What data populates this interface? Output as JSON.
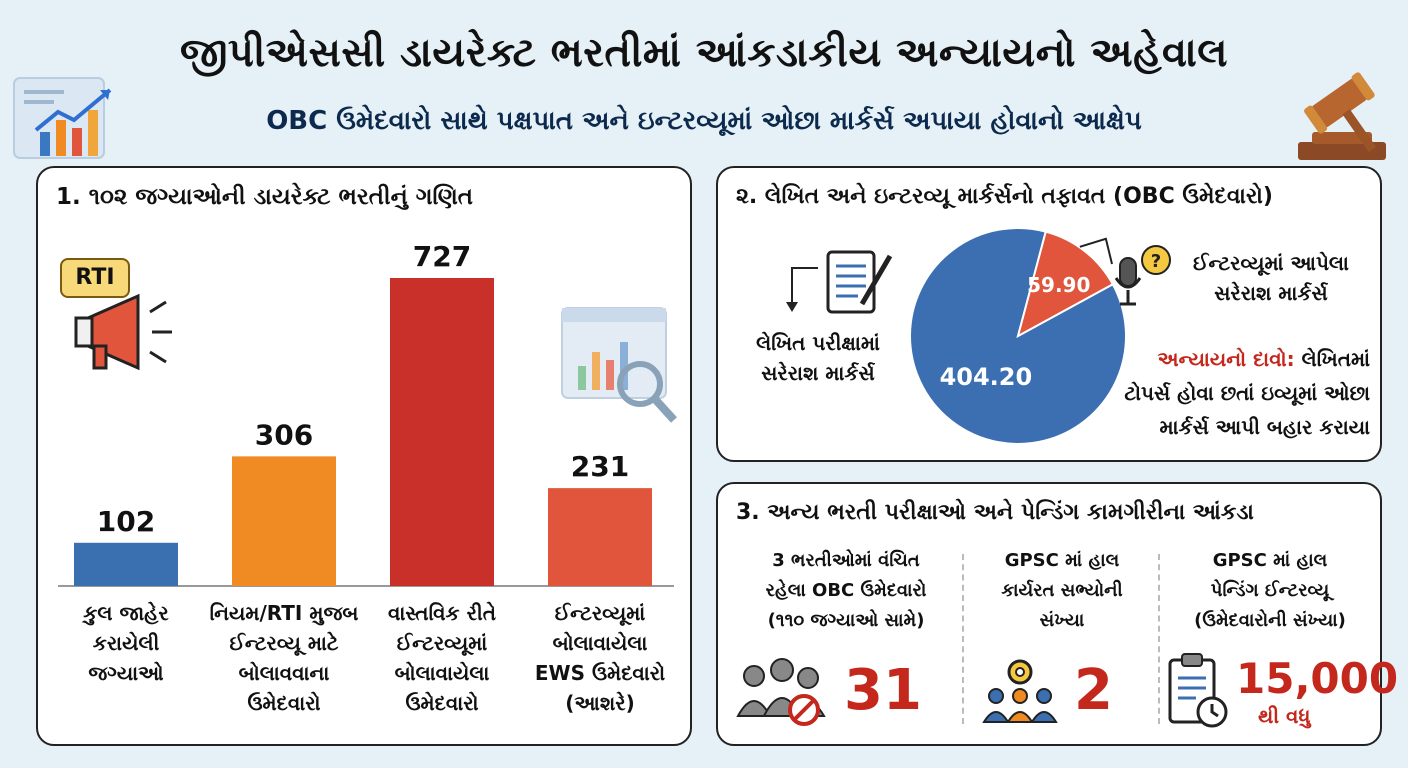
{
  "header": {
    "title": "જીપીએસસી ડાયરેક્ટ ભરતીમાં આંકડાકીય અન્યાયનો અહેવાલ",
    "subtitle": "OBC ઉમેદવારો સાથે પક્ષપાત અને ઇન્ટરવ્યૂમાં ઓછા માર્કર્સ અપાયા હોવાનો આક્ષેપ"
  },
  "chart_data": [
    {
      "type": "bar",
      "title": "1. ૧૦૨ જગ્યાઓની ડાયરેક્ટ ભરતીનું ગણિત",
      "categories": [
        "કુલ જાહેર કરાયેલી જગ્યાઓ",
        "નિયમ/RTI મુજબ ઈન્ટરવ્યૂ માટે બોલાવવાના ઉમેદવારો",
        "વાસ્તવિક રીતે ઈન્ટરવ્યૂમાં બોલાવાયેલા ઉમેદવારો",
        "ઈન્ટરવ્યૂમાં બોલાવાયેલા EWS ઉમેદવારો (આશરે)"
      ],
      "category_lines": [
        [
          "કુલ જાહેર",
          "કરાયેલી",
          "જગ્યાઓ"
        ],
        [
          "નિયમ/RTI મુજબ",
          "ઈન્ટરવ્યૂ માટે",
          "બોલાવવાના",
          "ઉમેદવારો"
        ],
        [
          "વાસ્તવિક રીતે",
          "ઈન્ટરવ્યૂમાં",
          "બોલાવાયેલા",
          "ઉમેદવારો"
        ],
        [
          "ઈન્ટરવ્યૂમાં",
          "બોલાવાયેલા",
          "EWS ઉમેદવારો",
          "(આશરે)"
        ]
      ],
      "values": [
        102,
        306,
        727,
        231
      ],
      "value_labels": [
        "102",
        "306",
        "727",
        "231"
      ],
      "colors": [
        "#3a6fb0",
        "#f08a22",
        "#c9302a",
        "#e0553b"
      ],
      "ylim": [
        0,
        727
      ],
      "grid": false,
      "badge": "RTI"
    },
    {
      "type": "pie",
      "title": "૨. લેખિત અને ઇન્ટરવ્યૂ માર્કર્સનો તફાવત (OBC ઉમેદવારો)",
      "slices": [
        {
          "label": "લેખિત પરીક્ષામાં સરેરાશ માર્કર્સ",
          "lines": [
            "લેખિત પરીક્ષામાં",
            "સરેરાશ માર્કર્સ"
          ],
          "value": 404.2,
          "display": "404.20",
          "color": "#3b6fb2"
        },
        {
          "label": "ઈન્ટરવ્યૂમાં આપેલા સરેરાશ માર્કર્સ",
          "lines": [
            "ઈન્ટરવ્યૂમાં આપેલા",
            "સરેરાશ માર્કર્સ"
          ],
          "value": 59.9,
          "display": "59.90",
          "color": "#e0553b"
        }
      ],
      "claim_prefix": "અન્યાયનો દાવો:",
      "claim_lines": [
        "લેખિતમાં",
        "ટોપર્સ હોવા છતાં ઇવ્યૂમાં ઓછા",
        "માર્કર્સ આપી બહાર કરાયા"
      ]
    }
  ],
  "stats": {
    "title": "3. અન્ય ભરતી પરીક્ષાઓ અને પેન્ડિંગ કામગીરીના આંકડા",
    "items": [
      {
        "lines": [
          "3 ભરતીઓમાં વંચિત",
          "રહેલા OBC ઉમેદવારો",
          "(૧૧૦ જગ્યાઓ સામે)"
        ],
        "value": "31",
        "icon": "people-blocked-icon"
      },
      {
        "lines": [
          "GPSC માં હાલ",
          "કાર્યરત સભ્યોની",
          "સંખ્યા"
        ],
        "value": "2",
        "icon": "team-gear-icon"
      },
      {
        "lines": [
          "GPSC માં હાલ",
          "પેન્ડિંગ ઈન્ટરવ્યૂ",
          "(ઉમેદવારોની સંખ્યા)"
        ],
        "value": "15,000",
        "suffix": "થી વધુ",
        "icon": "clipboard-clock-icon"
      }
    ]
  }
}
